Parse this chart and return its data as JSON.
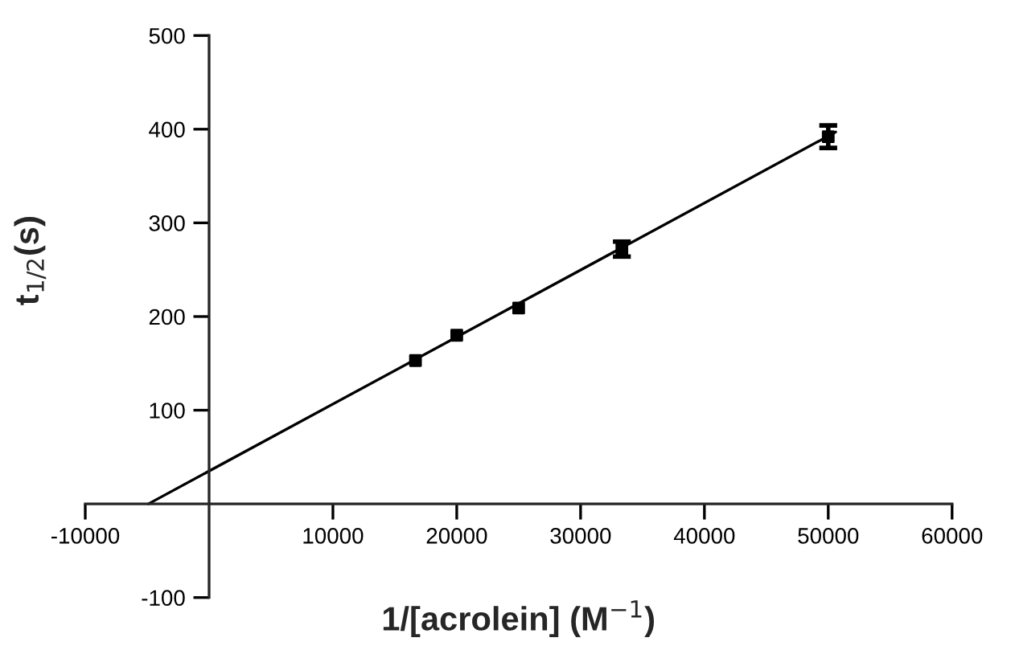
{
  "chart_data": {
    "type": "scatter",
    "xlabel": "1/[acrolein] (M$^{−1}$)",
    "ylabel": "t$_{1/2}$(s)",
    "xlim": [
      -10000,
      60000
    ],
    "xticks": [
      -10000,
      10000,
      20000,
      30000,
      40000,
      50000,
      60000
    ],
    "ylim": [
      -100,
      500
    ],
    "yticks": [
      -100,
      100,
      200,
      300,
      400,
      500
    ],
    "grid": false,
    "legend": false,
    "series": [
      {
        "marker": "square",
        "color": "#000000",
        "x": [
          16667,
          20000,
          25000,
          33333,
          50000
        ],
        "values": [
          153,
          180,
          209,
          272,
          392
        ],
        "errors": [
          null,
          null,
          null,
          8,
          12
        ]
      },
      {
        "type": "line",
        "line_style": "solid",
        "color": "#000000",
        "x": [
          -4900,
          50600
        ],
        "values": [
          0,
          397
        ]
      }
    ]
  }
}
